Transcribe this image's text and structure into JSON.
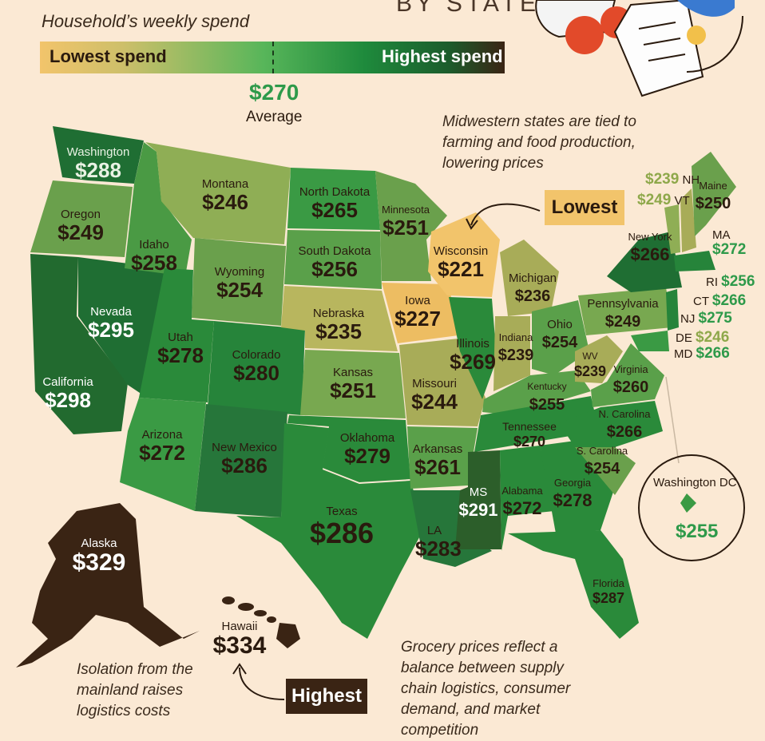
{
  "header": {
    "subtitle": "Household’s weekly spend",
    "by_state": "BY STATE"
  },
  "legend": {
    "low_label": "Lowest spend",
    "high_label": "Highest spend",
    "average_value": "$270",
    "average_label": "Average",
    "colors": [
      "#f2c46b",
      "#cdbf6a",
      "#58b65a",
      "#1e8a3c",
      "#1c5c2c",
      "#3a2414"
    ]
  },
  "notes": {
    "midwest": "Midwestern states are tied to farming and food production, lowering prices",
    "isolation": "Isolation from the mainland raises logistics costs",
    "grocery": "Grocery prices reflect a balance between supply chain logistics, consumer demand, and market competition"
  },
  "callouts": {
    "lowest": "Lowest",
    "highest": "Highest"
  },
  "dc": {
    "title": "Washington DC",
    "value": "$255"
  },
  "states": [
    {
      "name": "Washington",
      "value": "$288"
    },
    {
      "name": "Oregon",
      "value": "$249"
    },
    {
      "name": "California",
      "value": "$298"
    },
    {
      "name": "Nevada",
      "value": "$295"
    },
    {
      "name": "Idaho",
      "value": "$258"
    },
    {
      "name": "Montana",
      "value": "$246"
    },
    {
      "name": "Wyoming",
      "value": "$254"
    },
    {
      "name": "Utah",
      "value": "$278"
    },
    {
      "name": "Arizona",
      "value": "$272"
    },
    {
      "name": "Colorado",
      "value": "$280"
    },
    {
      "name": "New Mexico",
      "value": "$286"
    },
    {
      "name": "North Dakota",
      "value": "$265"
    },
    {
      "name": "South Dakota",
      "value": "$256"
    },
    {
      "name": "Nebraska",
      "value": "$235"
    },
    {
      "name": "Kansas",
      "value": "$251"
    },
    {
      "name": "Oklahoma",
      "value": "$279"
    },
    {
      "name": "Texas",
      "value": "$286"
    },
    {
      "name": "Minnesota",
      "value": "$251"
    },
    {
      "name": "Iowa",
      "value": "$227"
    },
    {
      "name": "Missouri",
      "value": "$244"
    },
    {
      "name": "Arkansas",
      "value": "$261"
    },
    {
      "name": "LA",
      "value": "$283"
    },
    {
      "name": "Wisconsin",
      "value": "$221"
    },
    {
      "name": "Illinois",
      "value": "$269"
    },
    {
      "name": "MS",
      "value": "$291"
    },
    {
      "name": "Michigan",
      "value": "$236"
    },
    {
      "name": "Indiana",
      "value": "$239"
    },
    {
      "name": "Kentucky",
      "value": "$255"
    },
    {
      "name": "Tennessee",
      "value": "$270"
    },
    {
      "name": "Alabama",
      "value": "$272"
    },
    {
      "name": "Ohio",
      "value": "$254"
    },
    {
      "name": "Georgia",
      "value": "$278"
    },
    {
      "name": "Florida",
      "value": "$287"
    },
    {
      "name": "WV",
      "value": "$239"
    },
    {
      "name": "Virginia",
      "value": "$260"
    },
    {
      "name": "N. Carolina",
      "value": "$266"
    },
    {
      "name": "S. Carolina",
      "value": "$254"
    },
    {
      "name": "Pennsylvania",
      "value": "$249"
    },
    {
      "name": "New York",
      "value": "$266"
    },
    {
      "name": "Maine",
      "value": "$250"
    },
    {
      "name": "Alaska",
      "value": "$329"
    },
    {
      "name": "Hawaii",
      "value": "$334"
    }
  ],
  "northeast": [
    {
      "name": "NH",
      "value": "$239"
    },
    {
      "name": "VT",
      "value": "$249"
    },
    {
      "name": "MA",
      "value": "$272"
    },
    {
      "name": "RI",
      "value": "$256"
    },
    {
      "name": "CT",
      "value": "$266"
    },
    {
      "name": "NJ",
      "value": "$275"
    },
    {
      "name": "DE",
      "value": "$246"
    },
    {
      "name": "MD",
      "value": "$266"
    }
  ]
}
